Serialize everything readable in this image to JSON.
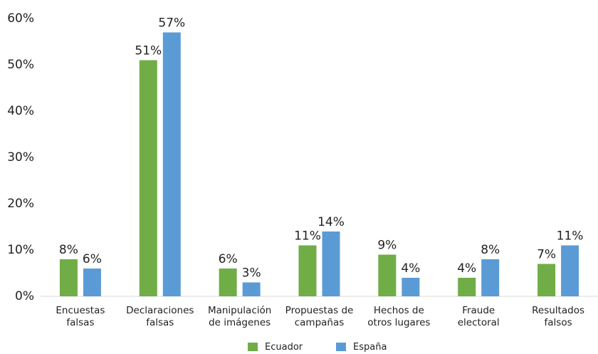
{
  "chart_data": {
    "type": "bar",
    "categories": [
      [
        "Encuestas",
        "falsas"
      ],
      [
        "Declaraciones",
        "falsas"
      ],
      [
        "Manipulación",
        "de imágenes"
      ],
      [
        "Propuestas de",
        "campañas"
      ],
      [
        "Hechos de",
        "otros lugares"
      ],
      [
        "Fraude",
        "electoral"
      ],
      [
        "Resultados",
        "falsos"
      ]
    ],
    "series": [
      {
        "name": "Ecuador",
        "color": "#70ad47",
        "values": [
          8,
          51,
          6,
          11,
          9,
          4,
          7
        ],
        "value_labels": [
          "8%",
          "51%",
          "6%",
          "11%",
          "9%",
          "4%",
          "7%"
        ]
      },
      {
        "name": "España",
        "color": "#5b9bd5",
        "values": [
          6,
          57,
          3,
          14,
          4,
          8,
          11
        ],
        "value_labels": [
          "6%",
          "57%",
          "3%",
          "14%",
          "4%",
          "8%",
          "11%"
        ]
      }
    ],
    "ylim": [
      0,
      60
    ],
    "yticks": [
      {
        "value": 0,
        "label": "0%"
      },
      {
        "value": 10,
        "label": "10%"
      },
      {
        "value": 20,
        "label": "20%"
      },
      {
        "value": 30,
        "label": "30%"
      },
      {
        "value": 40,
        "label": "40%"
      },
      {
        "value": 50,
        "label": "50%"
      },
      {
        "value": 60,
        "label": "60%"
      }
    ],
    "grid": false,
    "legend": "bottom"
  }
}
